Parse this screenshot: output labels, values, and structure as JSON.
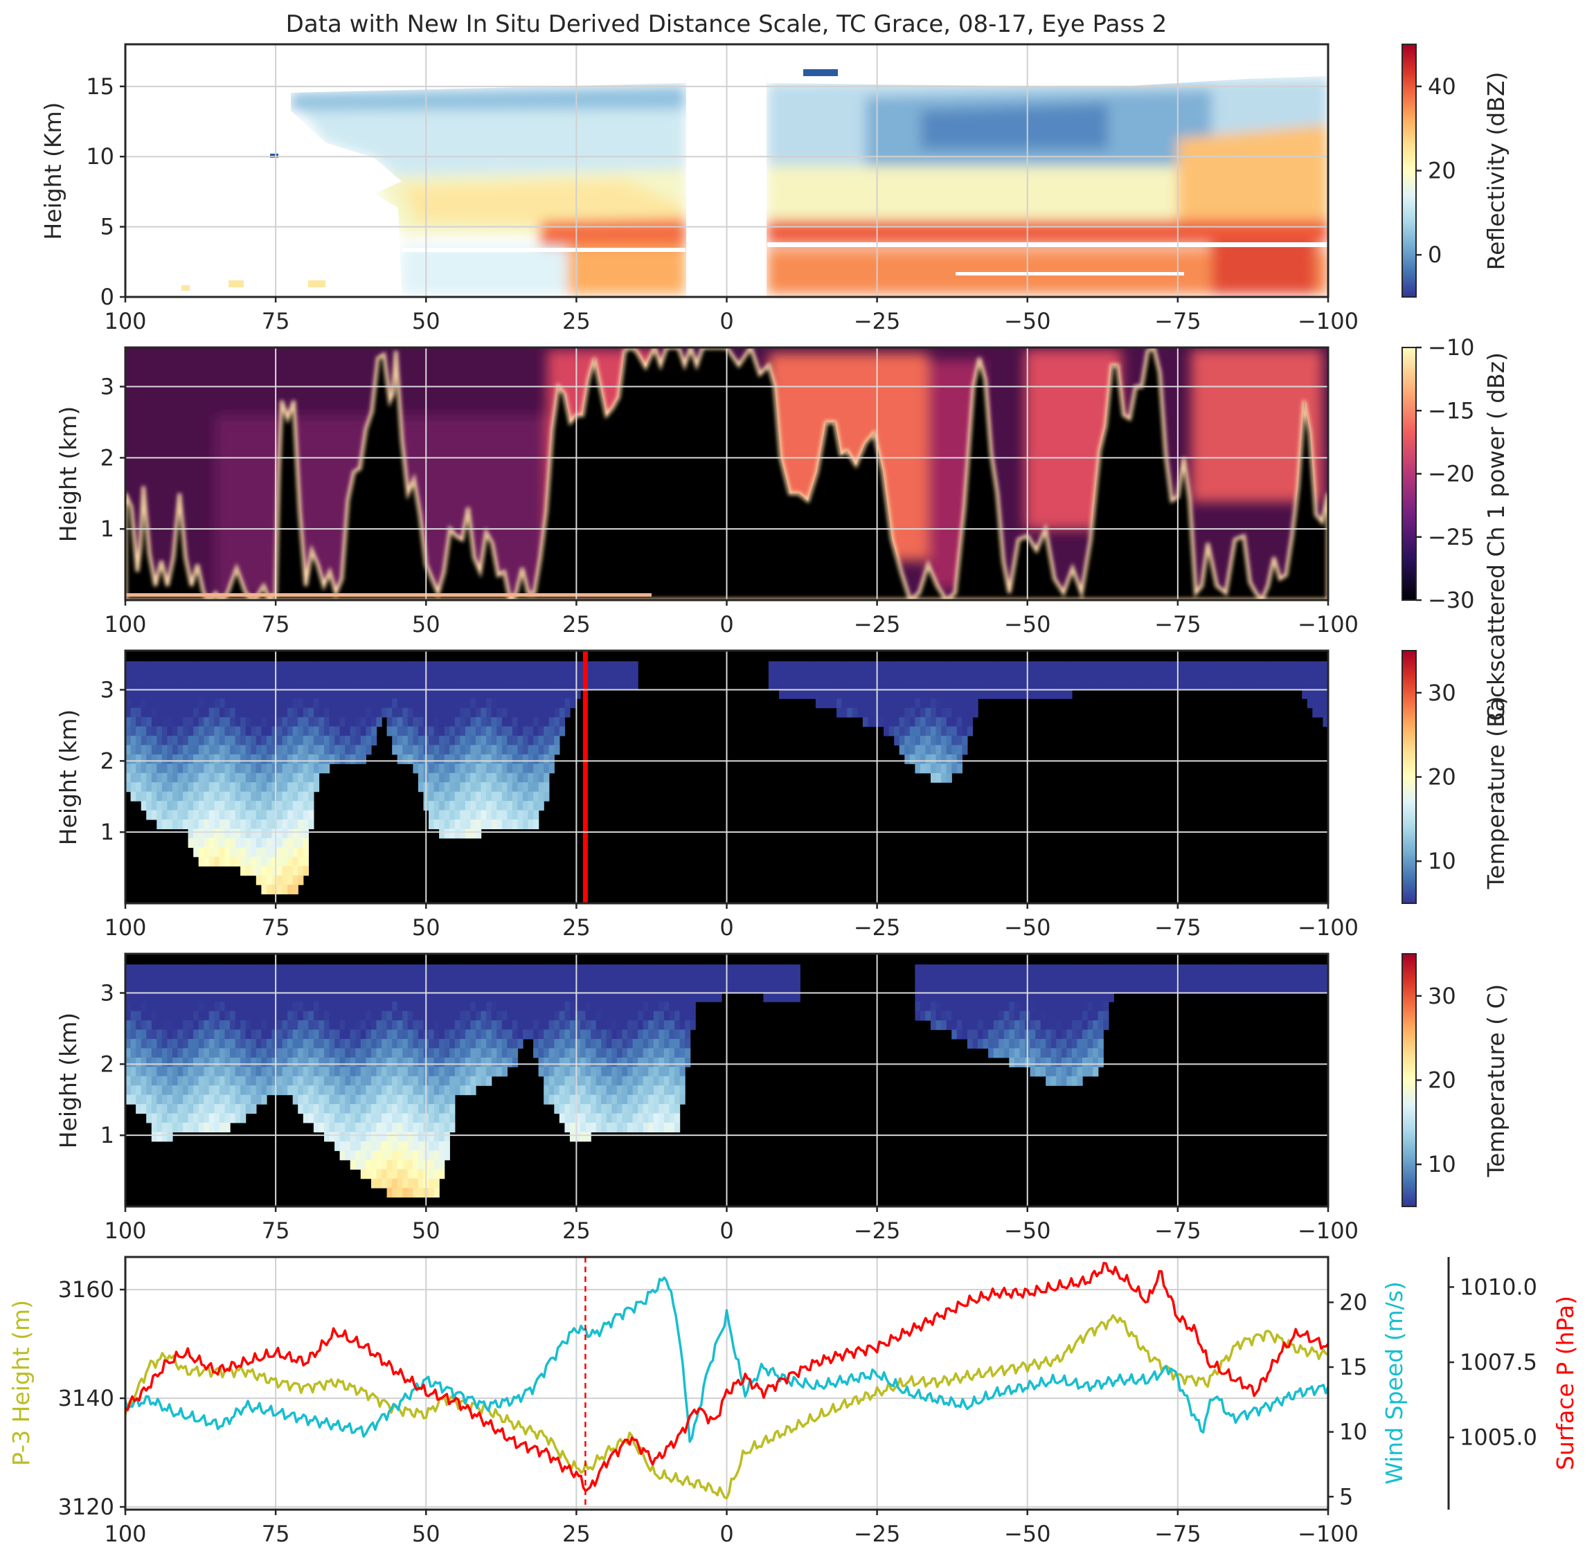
{
  "title": "Data with New In Situ Derived Distance Scale, TC Grace, 08-17, Eye Pass 2",
  "palettes": {
    "reflectivity": [
      "#313695",
      "#4575b4",
      "#74add1",
      "#abd9e9",
      "#e0f3f8",
      "#ffffbf",
      "#fee090",
      "#fdae61",
      "#f46d43",
      "#d73027",
      "#a50026"
    ],
    "backscatter": [
      "#000004",
      "#2c115f",
      "#721f81",
      "#b73779",
      "#f1605d",
      "#feb078",
      "#fcfdbf"
    ],
    "temperature": [
      "#313695",
      "#4575b4",
      "#74add1",
      "#abd9e9",
      "#e0f3f8",
      "#ffffbf",
      "#fee090",
      "#fdae61",
      "#f46d43",
      "#d73027",
      "#a50026"
    ],
    "no_data": "#000000",
    "p3_height_color": "#bcbd22",
    "wind_speed_color": "#17becf",
    "surface_p_color": "#ff0000",
    "marker_color": "#ff0000"
  },
  "chart_data": [
    {
      "type": "heatmap",
      "panel": "radar",
      "xlim": [
        100,
        -100
      ],
      "ylim": [
        0,
        18
      ],
      "x_ticks": [
        "100",
        "75",
        "50",
        "25",
        "0",
        "−25",
        "−50",
        "−75",
        "−100"
      ],
      "y_ticks": [
        "0",
        "5",
        "10",
        "15"
      ],
      "ylabel": "Height (Km)",
      "colorbar": {
        "label": "Reflectivity (dBZ)",
        "range": [
          -10,
          50
        ],
        "ticks": [
          "0",
          "20",
          "40"
        ]
      },
      "coverage": {
        "left_echo_x": [
          73,
          6
        ],
        "eye_gap_x": [
          6,
          -7
        ],
        "right_echo_x": [
          -7,
          -100
        ],
        "echo_top_km": [
          14.5,
          15.5
        ],
        "melting_layer_km": 4.5
      }
    },
    {
      "type": "heatmap",
      "panel": "lidar_backscatter",
      "xlim": [
        100,
        -100
      ],
      "ylim": [
        0,
        3.55
      ],
      "x_ticks": [
        "100",
        "75",
        "50",
        "25",
        "0",
        "−25",
        "−50",
        "−75",
        "−100"
      ],
      "y_ticks": [
        "1",
        "2",
        "3"
      ],
      "ylabel": "Height (km)",
      "colorbar": {
        "label": "Backscattered Ch 1 power ( dBz)",
        "range": [
          -30,
          -10
        ],
        "ticks": [
          "−10",
          "−15",
          "−20",
          "−25",
          "−30"
        ]
      }
    },
    {
      "type": "heatmap",
      "panel": "temperature_1",
      "xlim": [
        100,
        -100
      ],
      "ylim": [
        0,
        3.55
      ],
      "x_ticks": [
        "100",
        "75",
        "50",
        "25",
        "0",
        "−25",
        "−50",
        "−75",
        "−100"
      ],
      "y_ticks": [
        "1",
        "2",
        "3"
      ],
      "ylabel": "Height (km)",
      "marker_x": 23.5,
      "colorbar": {
        "label": "Temperature ( C)",
        "range": [
          5,
          35
        ],
        "ticks": [
          "10",
          "20",
          "30"
        ]
      },
      "cloud_top_profile": {
        "x": [
          100,
          97,
          94,
          90,
          88,
          84,
          80,
          76,
          74,
          72,
          70,
          68,
          65,
          60,
          57,
          55,
          52,
          49,
          45,
          40,
          35,
          32,
          30,
          27,
          25,
          23,
          15,
          10,
          -7,
          -10,
          -15,
          -20,
          -25,
          -28,
          -30,
          -33,
          -36,
          -39,
          -42,
          -60,
          -95,
          -100
        ],
        "height_km": [
          1.6,
          1.3,
          1.0,
          1.0,
          0.6,
          0.5,
          0.45,
          0.1,
          0.1,
          0.1,
          0.4,
          1.8,
          1.95,
          2.0,
          2.6,
          2.0,
          1.9,
          1.0,
          0.9,
          1.0,
          1.1,
          1.0,
          1.5,
          2.5,
          2.9,
          3.0,
          3.0,
          3.0,
          3.0,
          2.9,
          2.8,
          2.6,
          2.5,
          2.3,
          2.0,
          1.8,
          1.7,
          1.9,
          2.9,
          2.95,
          3.0,
          2.4
        ]
      },
      "no_data_x": [
        [
          15,
          -7
        ]
      ]
    },
    {
      "type": "heatmap",
      "panel": "temperature_2",
      "xlim": [
        100,
        -100
      ],
      "ylim": [
        0,
        3.55
      ],
      "x_ticks": [
        "100",
        "75",
        "50",
        "25",
        "0",
        "−25",
        "−50",
        "−75",
        "−100"
      ],
      "y_ticks": [
        "1",
        "2",
        "3"
      ],
      "ylabel": "Height (km)",
      "colorbar": {
        "label": "Temperature ( C)",
        "range": [
          5,
          35
        ],
        "ticks": [
          "10",
          "20",
          "30"
        ]
      },
      "cloud_top_profile": {
        "x": [
          100,
          97,
          95,
          92,
          85,
          80,
          77,
          73,
          70,
          66,
          62,
          60,
          57,
          52,
          48,
          46,
          45,
          40,
          35,
          33,
          30,
          27,
          25,
          22,
          18,
          12,
          8,
          5,
          0,
          -5,
          -12,
          -20,
          -25,
          -30,
          -35,
          -40,
          -45,
          -50,
          -55,
          -57,
          -60,
          -62,
          -64,
          -90,
          -100
        ],
        "height_km": [
          1.5,
          1.3,
          0.9,
          1.0,
          1.0,
          1.2,
          1.5,
          1.6,
          1.2,
          0.9,
          0.5,
          0.4,
          0.2,
          0.1,
          0.2,
          0.8,
          1.5,
          1.7,
          2.0,
          2.5,
          1.5,
          1.1,
          0.9,
          1.0,
          1.05,
          1.0,
          1.1,
          2.9,
          2.95,
          2.95,
          2.9,
          2.85,
          2.8,
          2.7,
          2.5,
          2.3,
          2.1,
          1.9,
          1.7,
          1.7,
          1.8,
          1.9,
          2.95,
          2.95,
          2.95
        ]
      },
      "no_data_x": [
        [
          -12,
          -31
        ]
      ]
    },
    {
      "type": "line",
      "panel": "flight_level",
      "xlim": [
        100,
        -100
      ],
      "x_ticks": [
        "100",
        "75",
        "50",
        "25",
        "0",
        "−25",
        "−50",
        "−75",
        "−100"
      ],
      "marker_x": 23.5,
      "axes": [
        {
          "label": "P-3 Height (m)",
          "side": "left",
          "range": [
            3119.5,
            3166
          ],
          "ticks": [
            "3120",
            "3140",
            "3160"
          ]
        },
        {
          "label": "Wind Speed (m/s)",
          "side": "right",
          "range": [
            4,
            23.5
          ],
          "ticks": [
            "5",
            "10",
            "15",
            "20"
          ]
        },
        {
          "label": "Surface P (hPa)",
          "side": "right-offset",
          "range": [
            1002.6,
            1011
          ],
          "ticks": [
            "1005.0",
            "1007.5",
            "1010.0"
          ]
        }
      ],
      "series": [
        {
          "name": "P-3 Height (m)",
          "axis": 0,
          "x": [
            100,
            96,
            93,
            90,
            85,
            80,
            75,
            70,
            65,
            60,
            55,
            50,
            47,
            44,
            40,
            35,
            30,
            27,
            25,
            23,
            20,
            16,
            12,
            8,
            4,
            0,
            -3,
            -8,
            -12,
            -16,
            -20,
            -25,
            -30,
            -35,
            -40,
            -45,
            -50,
            -55,
            -60,
            -65,
            -70,
            -75,
            -80,
            -85,
            -90,
            -95,
            -100
          ],
          "values": [
            3137,
            3146,
            3148,
            3145,
            3145,
            3145,
            3143,
            3142,
            3143,
            3141,
            3138,
            3137,
            3140,
            3139,
            3138,
            3135,
            3133,
            3129,
            3127,
            3127,
            3130,
            3133,
            3126,
            3125,
            3124,
            3122,
            3130,
            3133,
            3135,
            3137,
            3139,
            3141,
            3143,
            3143,
            3144,
            3145,
            3146,
            3147,
            3152,
            3155,
            3148,
            3144,
            3143,
            3150,
            3152,
            3149,
            3148
          ]
        },
        {
          "name": "Wind Speed (m/s)",
          "axis": 1,
          "x": [
            100,
            96,
            92,
            88,
            84,
            80,
            75,
            70,
            65,
            60,
            55,
            50,
            45,
            40,
            35,
            32,
            30,
            27,
            25,
            22,
            18,
            14,
            10,
            8,
            6,
            3,
            0,
            -3,
            -6,
            -10,
            -15,
            -20,
            -25,
            -30,
            -35,
            -40,
            -45,
            -50,
            -55,
            -60,
            -65,
            -70,
            -74,
            -77,
            -79,
            -81,
            -84,
            -90,
            -95,
            -100
          ],
          "values": [
            12,
            12.5,
            11.5,
            11,
            10.5,
            12,
            11.5,
            11,
            10.5,
            10,
            12,
            14,
            13,
            12,
            12.5,
            13.5,
            15,
            17,
            18,
            17.5,
            19,
            20,
            22,
            18,
            9,
            15,
            19,
            13,
            15,
            14,
            13.5,
            14,
            14.5,
            13,
            12.5,
            12,
            13,
            13.5,
            14,
            13.5,
            14,
            14,
            15,
            12,
            10,
            13,
            11,
            12,
            13,
            13.5
          ]
        },
        {
          "name": "Surface P (hPa)",
          "axis": 2,
          "x": [
            100,
            97,
            93,
            90,
            85,
            80,
            75,
            70,
            65,
            60,
            55,
            50,
            45,
            40,
            35,
            30,
            27,
            25,
            23,
            20,
            16,
            12,
            8,
            5,
            2,
            0,
            -3,
            -6,
            -10,
            -15,
            -20,
            -25,
            -30,
            -35,
            -40,
            -45,
            -50,
            -55,
            -60,
            -63,
            -66,
            -70,
            -72,
            -75,
            -78,
            -80,
            -84,
            -88,
            -92,
            -95,
            -100
          ],
          "values": [
            1006,
            1006.5,
            1007.5,
            1007.8,
            1007.2,
            1007.5,
            1007.8,
            1007.5,
            1008.5,
            1008,
            1007.2,
            1006.5,
            1006.2,
            1005.5,
            1004.8,
            1004.5,
            1004,
            1003.8,
            1003.2,
            1004.2,
            1005,
            1004.2,
            1005,
            1006,
            1005.5,
            1006.5,
            1007,
            1006.5,
            1007,
            1007.5,
            1007.8,
            1008,
            1008.5,
            1009,
            1009.5,
            1009.8,
            1009.8,
            1010,
            1010.2,
            1010.7,
            1010.3,
            1009.5,
            1010.5,
            1009,
            1008.5,
            1007.5,
            1007,
            1006.5,
            1007.8,
            1008.5,
            1008
          ]
        }
      ]
    }
  ]
}
